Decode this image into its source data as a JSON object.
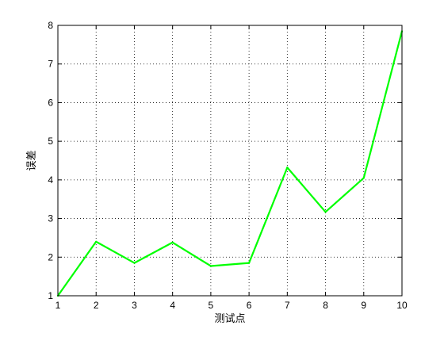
{
  "chart_data": {
    "type": "line",
    "title": "",
    "xlabel": "测试点",
    "ylabel": "误差",
    "xlim": [
      1,
      10
    ],
    "ylim": [
      1,
      8
    ],
    "xticks": [
      1,
      2,
      3,
      4,
      5,
      6,
      7,
      8,
      9,
      10
    ],
    "yticks": [
      1,
      2,
      3,
      4,
      5,
      6,
      7,
      8
    ],
    "grid": true,
    "grid_style": "dotted",
    "series": [
      {
        "color": "#00ff00",
        "x": [
          1,
          2,
          3,
          4,
          5,
          6,
          7,
          8,
          9,
          10
        ],
        "y": [
          1.0,
          2.4,
          1.85,
          2.38,
          1.77,
          1.85,
          4.32,
          3.17,
          4.05,
          7.85
        ]
      }
    ]
  }
}
